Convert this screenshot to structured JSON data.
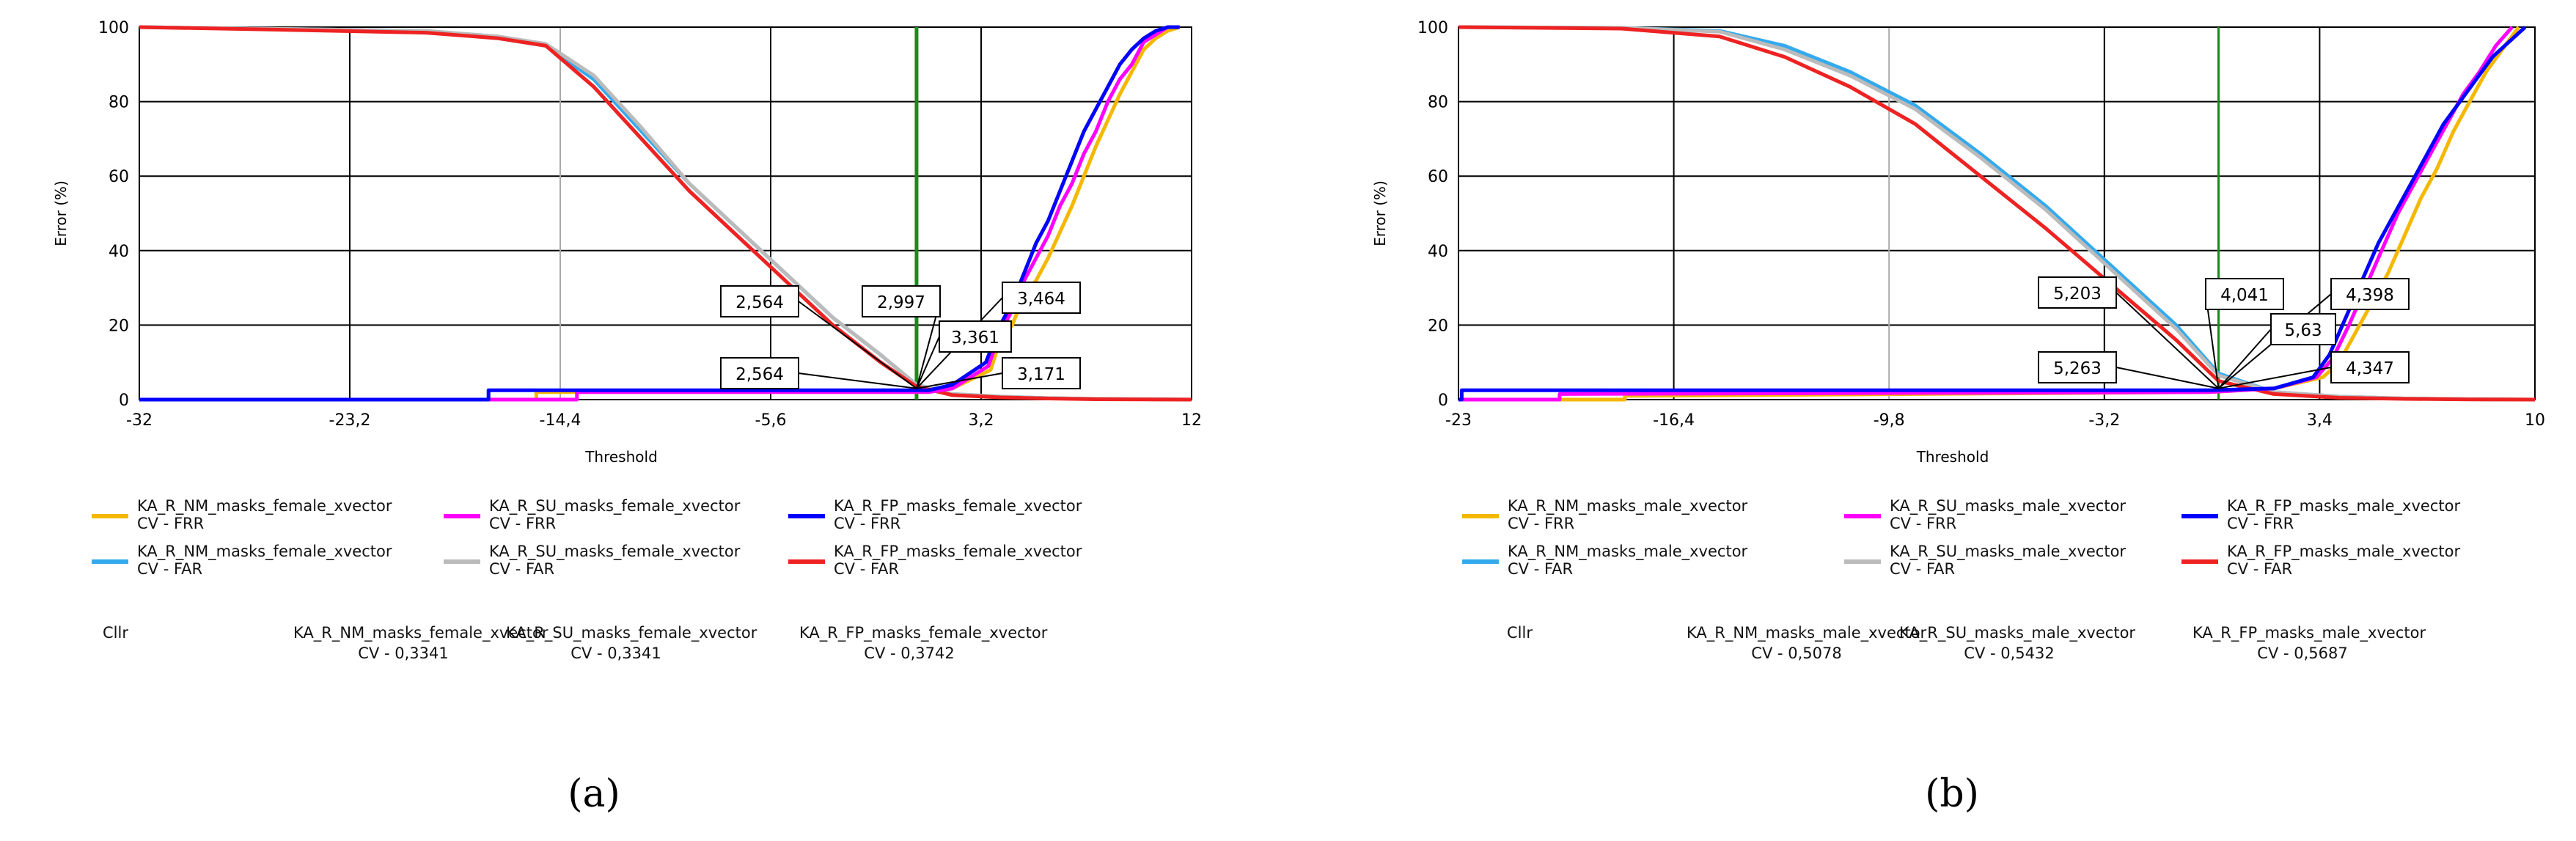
{
  "chart_data": [
    {
      "type": "line",
      "caption": "(a)",
      "xlabel": "Threshold",
      "ylabel": "Error (%)",
      "xlim": [
        -32,
        12
      ],
      "ylim": [
        0,
        100
      ],
      "xticks": [
        "-32",
        "-23,2",
        "-14,4",
        "-5,6",
        "3,2",
        "12"
      ],
      "yticks": [
        "0",
        "20",
        "40",
        "60",
        "80",
        "100"
      ],
      "grid": true,
      "eer_line_x": 0.5,
      "series": [
        {
          "name": "KA_R_NM_masks_female_xvector\nCV - FRR",
          "color": "#f5b800",
          "x": [
            -32,
            -15.5,
            -15.4,
            -15.4,
            1,
            2,
            3.6,
            4,
            4.5,
            5,
            5.5,
            6,
            6.5,
            7,
            7.5,
            8,
            8.5,
            9,
            9.5,
            10,
            10.5,
            11,
            11.5
          ],
          "y": [
            0,
            0,
            0,
            2,
            2,
            3,
            8,
            16,
            20,
            28,
            32,
            38,
            45,
            52,
            60,
            68,
            75,
            82,
            88,
            94,
            97,
            99,
            100
          ]
        },
        {
          "name": "KA_R_NM_masks_female_xvector\nCV - FAR",
          "color": "#33aaee",
          "x": [
            -32,
            -26,
            -20,
            -17,
            -15,
            -13,
            -11,
            -9,
            -7,
            -5,
            -3,
            -1,
            0.5,
            2,
            4,
            6,
            8,
            10,
            12
          ],
          "y": [
            100,
            99.5,
            99,
            97,
            95,
            86,
            72,
            58,
            46,
            34,
            22,
            12,
            4,
            1.5,
            0.8,
            0.4,
            0.2,
            0.1,
            0
          ]
        },
        {
          "name": "KA_R_SU_masks_female_xvector\nCV - FRR",
          "color": "#ff00ff",
          "x": [
            -32,
            -13.8,
            -13.7,
            -13.7,
            1,
            2,
            3.5,
            4,
            4.5,
            5,
            5.5,
            6,
            6.5,
            7,
            7.5,
            8,
            8.5,
            9,
            9.5,
            10,
            10.5,
            11,
            11.5
          ],
          "y": [
            0,
            0,
            0,
            2,
            2,
            3,
            9,
            18,
            24,
            32,
            38,
            44,
            52,
            58,
            66,
            72,
            80,
            86,
            90,
            96,
            98,
            100,
            100
          ]
        },
        {
          "name": "KA_R_SU_masks_female_xvector\nCV - FAR",
          "color": "#bbbbbb",
          "x": [
            -32,
            -26,
            -20,
            -17,
            -15,
            -13,
            -11,
            -9,
            -7,
            -5,
            -3,
            -1,
            0.5,
            2,
            4,
            6,
            8,
            10,
            12
          ],
          "y": [
            100,
            99.5,
            99,
            97.5,
            95.5,
            87,
            73,
            58,
            46,
            34,
            22,
            12,
            4,
            1.5,
            0.8,
            0.4,
            0.2,
            0.1,
            0
          ]
        },
        {
          "name": "KA_R_FP_masks_female_xvector\nCV - FRR",
          "color": "#0000ff",
          "x": [
            -32,
            -17.5,
            -17.4,
            -17.4,
            1,
            2,
            3.4,
            4,
            4.5,
            5,
            5.5,
            6,
            6.5,
            7,
            7.5,
            8,
            8.5,
            9,
            9.5,
            10,
            10.5,
            11,
            11.5
          ],
          "y": [
            0,
            0,
            0,
            2.5,
            2.5,
            4,
            10,
            20,
            26,
            34,
            42,
            48,
            56,
            64,
            72,
            78,
            84,
            90,
            94,
            97,
            99,
            100,
            100
          ]
        },
        {
          "name": "KA_R_FP_masks_female_xvector\nCV - FAR",
          "color": "#ee2222",
          "x": [
            -32,
            -26,
            -20,
            -17,
            -15,
            -13,
            -11,
            -9,
            -7,
            -5,
            -3,
            -1,
            0.5,
            2,
            4,
            6,
            8,
            10,
            12
          ],
          "y": [
            100,
            99.3,
            98.5,
            97,
            95,
            84,
            70,
            56,
            44,
            32,
            20,
            10,
            3.5,
            1.2,
            0.6,
            0.3,
            0.1,
            0.05,
            0
          ]
        }
      ],
      "callouts": [
        "2,564",
        "2,997",
        "3,464",
        "2,564",
        "3,171",
        "3,361"
      ],
      "cllr": {
        "label": "Cllr",
        "entries": [
          "KA_R_NM_masks_female_xvector\nCV - 0,3341",
          "KA_R_SU_masks_female_xvector\nCV - 0,3341",
          "KA_R_FP_masks_female_xvector\nCV - 0,3742"
        ]
      }
    },
    {
      "type": "line",
      "caption": "(b)",
      "xlabel": "Threshold",
      "ylabel": "Error (%)",
      "xlim": [
        -23,
        10
      ],
      "ylim": [
        0,
        100
      ],
      "xticks": [
        "-23",
        "-16,4",
        "-9,8",
        "-3,2",
        "3,4",
        "10"
      ],
      "yticks": [
        "0",
        "20",
        "40",
        "60",
        "80",
        "100"
      ],
      "grid": true,
      "eer_line_x": 0.3,
      "series": [
        {
          "name": "KA_R_NM_masks_male_xvector\nCV - FRR",
          "color": "#f5b800",
          "x": [
            -23,
            -18,
            -17.9,
            -17.9,
            0,
            2,
            3.5,
            4,
            4.5,
            5,
            5.5,
            6,
            6.5,
            7,
            7.5,
            8,
            8.5,
            9,
            9.5
          ],
          "y": [
            0,
            0,
            0,
            1,
            2,
            3,
            6,
            10,
            18,
            26,
            34,
            44,
            54,
            62,
            72,
            80,
            88,
            94,
            100
          ]
        },
        {
          "name": "KA_R_NM_masks_male_xvector\nCV - FAR",
          "color": "#33aaee",
          "x": [
            -23,
            -18,
            -15,
            -13,
            -11,
            -9,
            -7,
            -5,
            -3,
            -1,
            0.3,
            2,
            4,
            6,
            8,
            10
          ],
          "y": [
            100,
            99.8,
            99,
            95,
            88,
            79,
            66,
            52,
            36,
            20,
            7,
            2,
            0.8,
            0.3,
            0.1,
            0
          ]
        },
        {
          "name": "KA_R_SU_masks_male_xvector\nCV - FRR",
          "color": "#ff00ff",
          "x": [
            -23,
            -20,
            -19.9,
            -19.9,
            0,
            2,
            3.3,
            3.8,
            4.3,
            4.8,
            5.3,
            5.8,
            6.3,
            6.8,
            7.3,
            7.8,
            8.3,
            8.8,
            9.3
          ],
          "y": [
            0,
            0,
            0,
            1.5,
            2,
            3,
            6,
            11,
            20,
            30,
            40,
            50,
            58,
            66,
            74,
            82,
            88,
            95,
            100
          ]
        },
        {
          "name": "KA_R_SU_masks_male_xvector\nCV - FAR",
          "color": "#bbbbbb",
          "x": [
            -23,
            -18,
            -15,
            -13,
            -11,
            -9,
            -7,
            -5,
            -3,
            -1,
            0.3,
            2,
            4,
            6,
            8,
            10
          ],
          "y": [
            100,
            99.8,
            98.8,
            94,
            87,
            78,
            65,
            51,
            35,
            19,
            6.5,
            2,
            0.8,
            0.3,
            0.1,
            0
          ]
        },
        {
          "name": "KA_R_FP_masks_male_xvector\nCV - FRR",
          "color": "#0000ff",
          "x": [
            -23,
            -22.9,
            -22.9,
            0,
            2,
            3.2,
            3.7,
            4.2,
            4.7,
            5.2,
            5.7,
            6.2,
            6.7,
            7.2,
            7.7,
            8.2,
            8.7,
            9.2,
            9.7
          ],
          "y": [
            0,
            0,
            2.5,
            2.5,
            3,
            6,
            12,
            22,
            32,
            42,
            50,
            58,
            66,
            74,
            80,
            86,
            92,
            96,
            100
          ]
        },
        {
          "name": "KA_R_FP_masks_male_xvector\nCV - FAR",
          "color": "#ee2222",
          "x": [
            -23,
            -18,
            -15,
            -13,
            -11,
            -9,
            -7,
            -5,
            -3,
            -1,
            0.3,
            2,
            4,
            6,
            8,
            10
          ],
          "y": [
            100,
            99.6,
            97.5,
            92,
            84,
            74,
            60,
            46,
            31,
            16,
            5,
            1.5,
            0.5,
            0.2,
            0.05,
            0
          ]
        }
      ],
      "callouts": [
        "5,203",
        "4,041",
        "4,398",
        "5,263",
        "4,347",
        "5,63"
      ],
      "cllr": {
        "label": "Cllr",
        "entries": [
          "KA_R_NM_masks_male_xvector\nCV - 0,5078",
          "KA_R_SU_masks_male_xvector\nCV - 0,5432",
          "KA_R_FP_masks_male_xvector\nCV - 0,5687"
        ]
      }
    }
  ]
}
